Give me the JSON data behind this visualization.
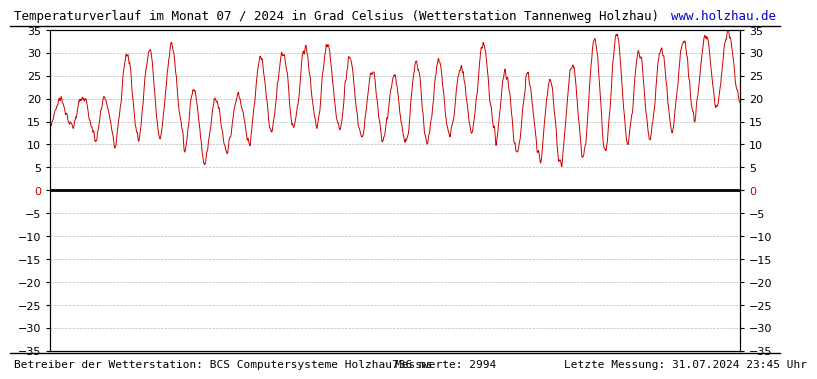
{
  "title": "Temperaturverlauf im Monat 07 / 2024 in Grad Celsius (Wetterstation Tannenweg Holzhau)",
  "url_text": "www.holzhau.de",
  "footer_left": "Betreiber der Wetterstation: BCS Computersysteme Holzhau",
  "footer_middle": "736 ms",
  "footer_right1": "Messwerte: 2994",
  "footer_right2": "Letzte Messung: 31.07.2024 23:45 Uhr",
  "ylim": [
    -35,
    35
  ],
  "yticks": [
    -35,
    -30,
    -25,
    -20,
    -15,
    -10,
    -5,
    0,
    5,
    10,
    15,
    20,
    25,
    30,
    35
  ],
  "bg_color": "#ffffff",
  "line_color": "#cc0000",
  "grid_color": "#bbbbbb",
  "title_fontsize": 9,
  "axis_fontsize": 8,
  "footer_fontsize": 8,
  "url_color": "#0000cc",
  "n_points": 2994,
  "daily_min": [
    14,
    13,
    10,
    12,
    11,
    13,
    6,
    8,
    10,
    12,
    14,
    15,
    14,
    12,
    11,
    11,
    10,
    12,
    13,
    14,
    9,
    8,
    5,
    7,
    8,
    10,
    11,
    13,
    15,
    18,
    20
  ],
  "daily_max": [
    20,
    21,
    20,
    30,
    31,
    32,
    22,
    20,
    21,
    29,
    30,
    31,
    32,
    29,
    26,
    25,
    28,
    28,
    27,
    32,
    26,
    25,
    24,
    28,
    33,
    34,
    30,
    31,
    33,
    34,
    35
  ]
}
